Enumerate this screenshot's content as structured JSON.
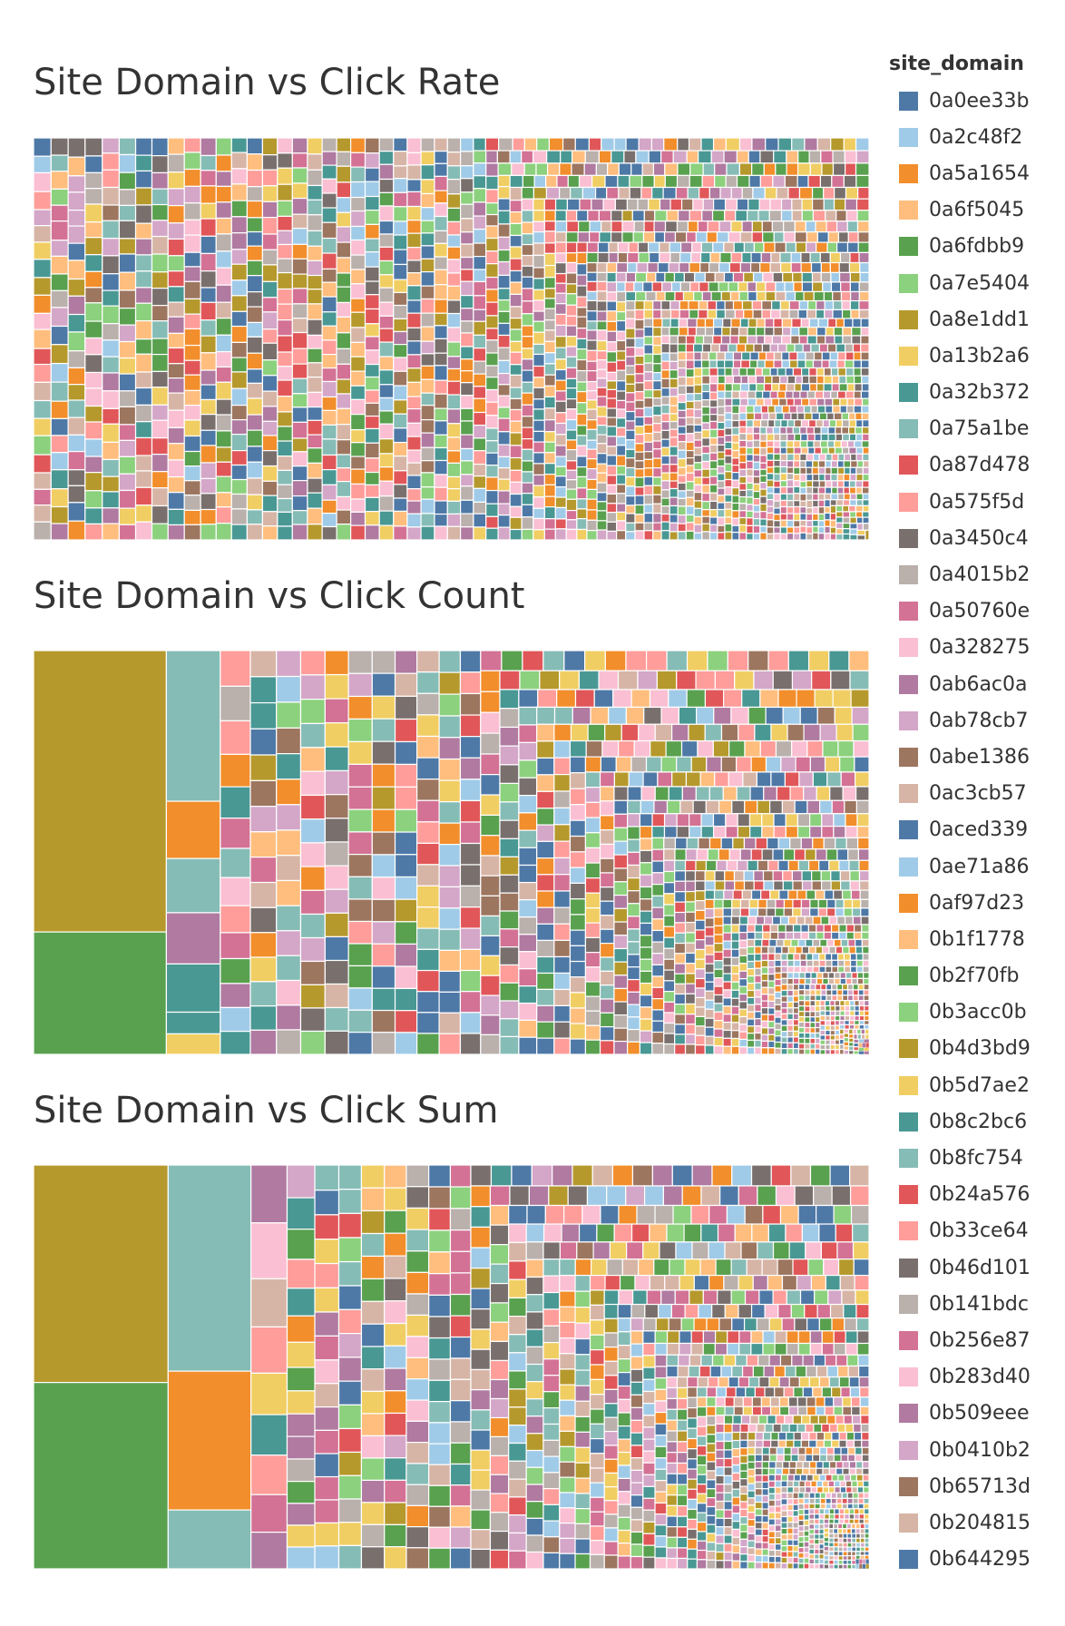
{
  "legend": {
    "title": "site_domain",
    "items": [
      {
        "label": "0a0ee33b",
        "color": "#4e79a7"
      },
      {
        "label": "0a2c48f2",
        "color": "#a0cbe8"
      },
      {
        "label": "0a5a1654",
        "color": "#f28e2b"
      },
      {
        "label": "0a6f5045",
        "color": "#ffbe7d"
      },
      {
        "label": "0a6fdbb9",
        "color": "#59a14f"
      },
      {
        "label": "0a7e5404",
        "color": "#8cd17d"
      },
      {
        "label": "0a8e1dd1",
        "color": "#b6992d"
      },
      {
        "label": "0a13b2a6",
        "color": "#f1ce63"
      },
      {
        "label": "0a32b372",
        "color": "#499894"
      },
      {
        "label": "0a75a1be",
        "color": "#86bcb6"
      },
      {
        "label": "0a87d478",
        "color": "#e15759"
      },
      {
        "label": "0a575f5d",
        "color": "#ff9d9a"
      },
      {
        "label": "0a3450c4",
        "color": "#79706e"
      },
      {
        "label": "0a4015b2",
        "color": "#bab0ac"
      },
      {
        "label": "0a50760e",
        "color": "#d37295"
      },
      {
        "label": "0a328275",
        "color": "#fabfd2"
      },
      {
        "label": "0ab6ac0a",
        "color": "#b07aa1"
      },
      {
        "label": "0ab78cb7",
        "color": "#d4a6c8"
      },
      {
        "label": "0abe1386",
        "color": "#9d7660"
      },
      {
        "label": "0ac3cb57",
        "color": "#d7b5a6"
      },
      {
        "label": "0aced339",
        "color": "#4e79a7"
      },
      {
        "label": "0ae71a86",
        "color": "#a0cbe8"
      },
      {
        "label": "0af97d23",
        "color": "#f28e2b"
      },
      {
        "label": "0b1f1778",
        "color": "#ffbe7d"
      },
      {
        "label": "0b2f70fb",
        "color": "#59a14f"
      },
      {
        "label": "0b3acc0b",
        "color": "#8cd17d"
      },
      {
        "label": "0b4d3bd9",
        "color": "#b6992d"
      },
      {
        "label": "0b5d7ae2",
        "color": "#f1ce63"
      },
      {
        "label": "0b8c2bc6",
        "color": "#499894"
      },
      {
        "label": "0b8fc754",
        "color": "#86bcb6"
      },
      {
        "label": "0b24a576",
        "color": "#e15759"
      },
      {
        "label": "0b33ce64",
        "color": "#ff9d9a"
      },
      {
        "label": "0b46d101",
        "color": "#79706e"
      },
      {
        "label": "0b141bdc",
        "color": "#bab0ac"
      },
      {
        "label": "0b256e87",
        "color": "#d37295"
      },
      {
        "label": "0b283d40",
        "color": "#fabfd2"
      },
      {
        "label": "0b509eee",
        "color": "#b07aa1"
      },
      {
        "label": "0b0410b2",
        "color": "#d4a6c8"
      },
      {
        "label": "0b65713d",
        "color": "#9d7660"
      },
      {
        "label": "0b204815",
        "color": "#d7b5a6"
      },
      {
        "label": "0b644295",
        "color": "#4e79a7"
      }
    ]
  },
  "chart_data": [
    {
      "type": "treemap",
      "title": "Site Domain vs Click Rate",
      "measure": "Click Rate",
      "dimension": "site_domain",
      "distribution": "many small, near-equal rectangles across all site_domain values; sizes taper gradually toward the bottom-right",
      "values": []
    },
    {
      "type": "treemap",
      "title": "Site Domain vs Click Count",
      "measure": "Click Count",
      "dimension": "site_domain",
      "distribution": "0b4d3bd9 largest, then 0a6fdbb9 and 0a75a1be; long tail of small domains",
      "values": [
        {
          "label": "0b4d3bd9",
          "color": "#b6992d",
          "value": 115000
        },
        {
          "label": "0a6fdbb9",
          "color": "#59a14f",
          "value": 50000
        },
        {
          "label": "0a75a1be",
          "color": "#86bcb6",
          "value": 25000
        },
        {
          "label": "0af97d23",
          "color": "#f28e2b",
          "value": 9500
        },
        {
          "label": "0b8fc754",
          "color": "#86bcb6",
          "value": 9000
        },
        {
          "label": "0ab6ac0a",
          "color": "#b07aa1",
          "value": 8500
        },
        {
          "label": "0b8c2bc6",
          "color": "#499894",
          "value": 8000
        },
        {
          "label": "0a32b372",
          "color": "#499894",
          "value": 3600
        },
        {
          "label": "0a13b2a6",
          "color": "#f1ce63",
          "value": 3400
        },
        {
          "label": "0a575f5d",
          "color": "#ff9d9a",
          "value": 3300
        },
        {
          "label": "0a4015b2",
          "color": "#bab0ac",
          "value": 3200
        },
        {
          "label": "0b33ce64",
          "color": "#ff9d9a",
          "value": 3100
        },
        {
          "label": "0a5a1654",
          "color": "#f28e2b",
          "value": 3000
        },
        {
          "label": "0b8c2bc6",
          "color": "#499894",
          "value": 2900
        },
        {
          "label": "0b256e87",
          "color": "#d37295",
          "value": 2800
        },
        {
          "label": "0a75a1be",
          "color": "#86bcb6",
          "value": 2700
        },
        {
          "label": "0a328275",
          "color": "#fabfd2",
          "value": 2600
        },
        {
          "label": "0a575f5d",
          "color": "#ff9d9a",
          "value": 2500
        },
        {
          "label": "0a50760e",
          "color": "#d37295",
          "value": 2400
        },
        {
          "label": "0a6fdbb9",
          "color": "#59a14f",
          "value": 2300
        },
        {
          "label": "0a2c48f2",
          "color": "#a0cbe8",
          "value": 2200
        }
      ]
    },
    {
      "type": "treemap",
      "title": "Site Domain vs Click Sum",
      "measure": "Click Sum",
      "dimension": "site_domain",
      "distribution": "0b4d3bd9 largest, then 0a6fdbb9, 0b8fc754, 0a5a1654; long tail of small domains",
      "values": [
        {
          "label": "0b4d3bd9",
          "color": "#b6992d",
          "value": 84000
        },
        {
          "label": "0a6fdbb9",
          "color": "#59a14f",
          "value": 72000
        },
        {
          "label": "0b8fc754",
          "color": "#86bcb6",
          "value": 49000
        },
        {
          "label": "0a5a1654",
          "color": "#f28e2b",
          "value": 33000
        },
        {
          "label": "0a75a1be",
          "color": "#86bcb6",
          "value": 14000
        },
        {
          "label": "0ab6ac0a",
          "color": "#b07aa1",
          "value": 6000
        },
        {
          "label": "0b283d40",
          "color": "#fabfd2",
          "value": 5800
        },
        {
          "label": "0ac3cb57",
          "color": "#d7b5a6",
          "value": 5000
        },
        {
          "label": "0b33ce64",
          "color": "#ff9d9a",
          "value": 4800
        },
        {
          "label": "0a13b2a6",
          "color": "#f1ce63",
          "value": 4300
        },
        {
          "label": "0b8c2bc6",
          "color": "#499894",
          "value": 4200
        },
        {
          "label": "0a575f5d",
          "color": "#ff9d9a",
          "value": 4100
        },
        {
          "label": "0a50760e",
          "color": "#d37295",
          "value": 3900
        },
        {
          "label": "0b509eee",
          "color": "#b07aa1",
          "value": 3800
        },
        {
          "label": "0ab78cb7",
          "color": "#d4a6c8",
          "value": 2600
        },
        {
          "label": "0a32b372",
          "color": "#499894",
          "value": 2500
        },
        {
          "label": "0b2f70fb",
          "color": "#59a14f",
          "value": 2400
        },
        {
          "label": "0b33ce64",
          "color": "#ff9d9a",
          "value": 2300
        },
        {
          "label": "0b8c2bc6",
          "color": "#499894",
          "value": 2200
        },
        {
          "label": "0af97d23",
          "color": "#f28e2b",
          "value": 2100
        },
        {
          "label": "0b5d7ae2",
          "color": "#f1ce63",
          "value": 2000
        }
      ]
    }
  ]
}
